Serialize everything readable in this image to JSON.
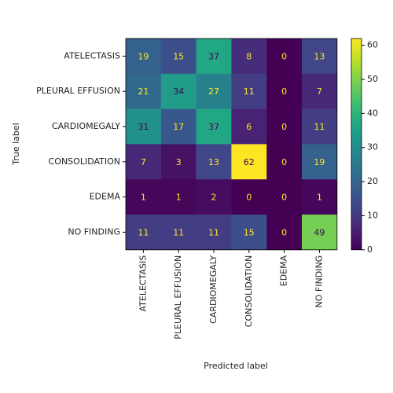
{
  "chart_data": {
    "type": "heatmap",
    "x_categories": [
      "ATELECTASIS",
      "PLEURAL EFFUSION",
      "CARDIOMEGALY",
      "CONSOLIDATION",
      "EDEMA",
      "NO FINDING"
    ],
    "y_categories": [
      "ATELECTASIS",
      "PLEURAL EFFUSION",
      "CARDIOMEGALY",
      "CONSOLIDATION",
      "EDEMA",
      "NO FINDING"
    ],
    "values": [
      [
        19,
        15,
        37,
        8,
        0,
        13
      ],
      [
        21,
        34,
        27,
        11,
        0,
        7
      ],
      [
        31,
        17,
        37,
        6,
        0,
        11
      ],
      [
        7,
        3,
        13,
        62,
        0,
        19
      ],
      [
        1,
        1,
        2,
        0,
        0,
        1
      ],
      [
        11,
        11,
        11,
        15,
        0,
        49
      ]
    ],
    "xlabel": "Predicted label",
    "ylabel": "True label",
    "colormap": "viridis",
    "zlim": [
      0,
      62
    ],
    "zticks": [
      0,
      10,
      20,
      30,
      40,
      50,
      60
    ]
  }
}
